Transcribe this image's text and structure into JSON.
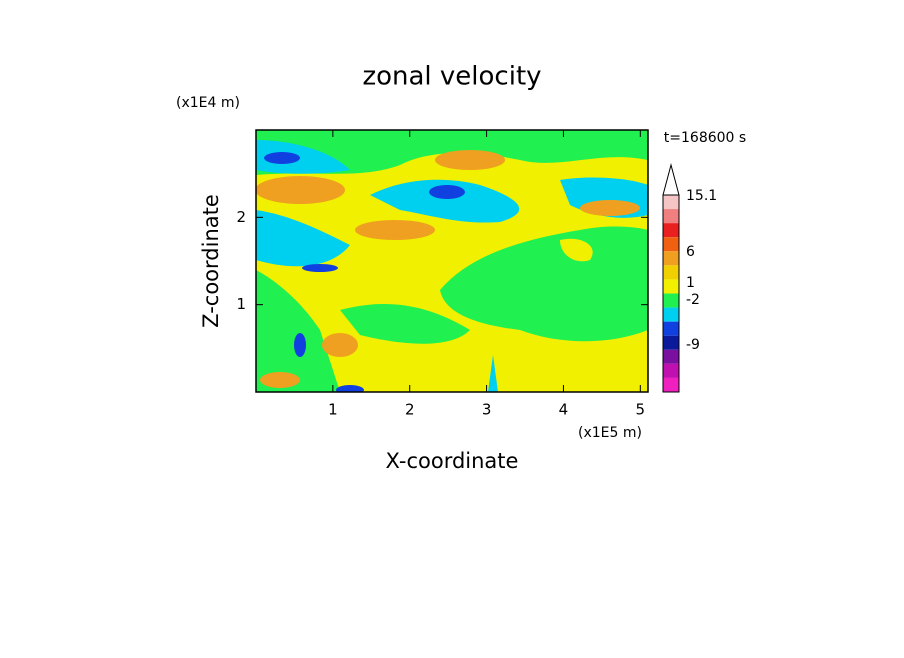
{
  "chart_data": {
    "type": "contour",
    "title": "zonal velocity",
    "x_label": "X-coordinate",
    "y_label": "Z-coordinate",
    "x_unit": "(x1E5 m)",
    "y_unit": "(x1E4 m)",
    "time_label": "t=168600 s",
    "xlim": [
      0,
      5.1
    ],
    "xticks": [
      1,
      2,
      3,
      4,
      5
    ],
    "ylim": [
      0,
      3
    ],
    "yticks": [
      1,
      2
    ],
    "colorbar_colors": [
      "#f5c4c4",
      "#f08080",
      "#e82020",
      "#f06010",
      "#f0a020",
      "#f0d000",
      "#f0f000",
      "#20f050",
      "#00d0f0",
      "#1040e0",
      "#0a1a9a",
      "#7a10a0",
      "#c010b0",
      "#f020c0"
    ],
    "colorbar_labels": [
      15.1,
      6,
      1,
      -2,
      -9
    ]
  }
}
